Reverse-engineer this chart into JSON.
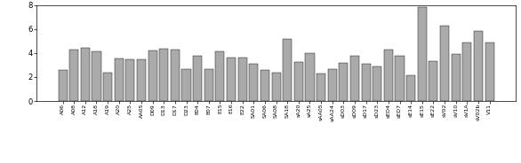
{
  "categories": [
    "A06",
    "A08",
    "A12",
    "A18",
    "A19",
    "A20",
    "A25",
    "AA05",
    "D09",
    "D13",
    "D17",
    "D23",
    "E04",
    "E07",
    "E15",
    "E16",
    "E22",
    "SA01",
    "SA06",
    "SA08",
    "SA18",
    "sA20",
    "sA25",
    "sAA05",
    "sAA24",
    "sD03",
    "sD09",
    "sD17",
    "sD23",
    "sED4",
    "sED7",
    "sE14",
    "sE15",
    "sE22",
    "sV02",
    "sV10",
    "sV1A",
    "sV02b",
    "V11"
  ],
  "values": [
    2.55,
    4.25,
    4.4,
    4.1,
    2.35,
    3.55,
    3.5,
    3.5,
    4.2,
    4.35,
    4.3,
    2.65,
    3.8,
    2.65,
    4.1,
    3.65,
    3.6,
    3.1,
    2.6,
    2.35,
    5.2,
    3.25,
    4.0,
    2.3,
    2.65,
    3.2,
    3.8,
    3.1,
    2.9,
    4.25,
    3.8,
    2.15,
    7.8,
    3.35,
    6.25,
    3.9,
    4.9,
    5.85,
    4.85
  ],
  "bar_color": "#aaaaaa",
  "ylim": [
    0,
    8
  ],
  "yticks": [
    0,
    2,
    4,
    6,
    8
  ],
  "xlabel_fontsize": 4.5,
  "ylabel_fontsize": 6,
  "bar_width": 0.8,
  "fig_width": 5.86,
  "fig_height": 1.84,
  "dpi": 100
}
